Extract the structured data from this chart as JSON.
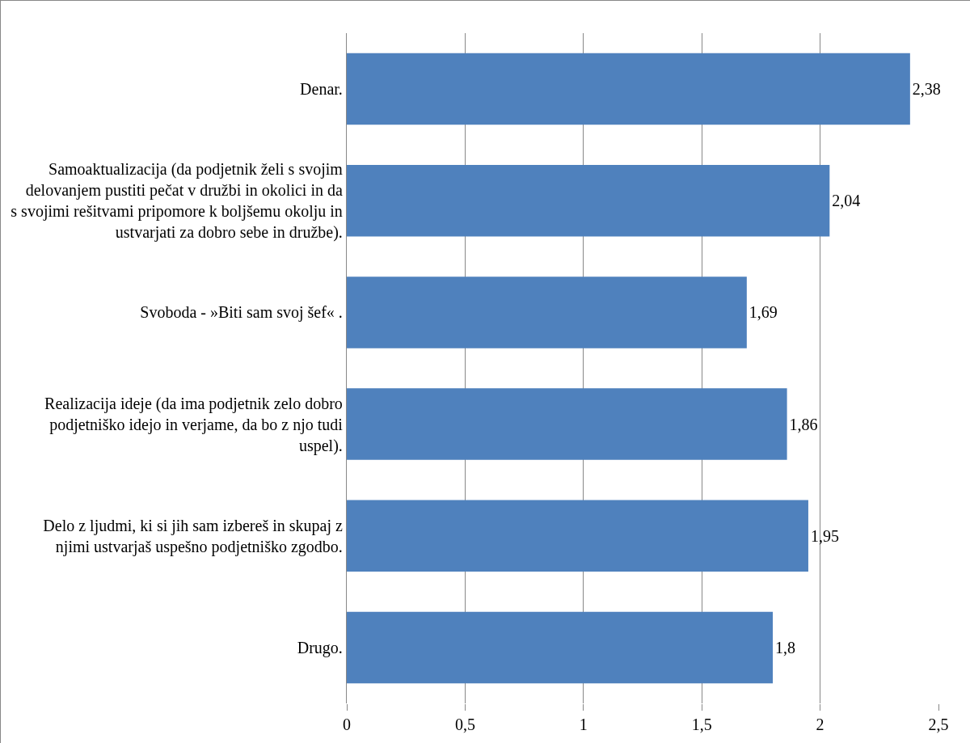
{
  "chart_data": {
    "type": "bar",
    "orientation": "horizontal",
    "categories": [
      "Denar.",
      "Samoaktualizacija (da podjetnik želi s svojim delovanjem pustiti pečat v družbi in okolici in da s svojimi rešitvami pripomore k boljšemu okolju in ustvarjati za dobro sebe in družbe).",
      "Svoboda - »Biti sam svoj šef« .",
      "Realizacija ideje (da ima podjetnik zelo dobro podjetniško idejo in verjame, da bo z njo tudi uspel).",
      "Delo z ljudmi, ki si jih sam izbereš in skupaj z njimi ustvarjaš uspešno podjetniško zgodbo.",
      "Drugo."
    ],
    "values": [
      2.38,
      2.04,
      1.69,
      1.86,
      1.95,
      1.8
    ],
    "color": "#4f81bd",
    "xlim": [
      0,
      2.5
    ],
    "xticks": [
      0,
      {
        "value": 0.5,
        "label": "0,5"
      },
      1,
      {
        "value": 1.5,
        "label": "1,5"
      },
      2,
      {
        "value": 2.5,
        "label": "2,5"
      }
    ],
    "value_labels": [
      "2,38",
      "2,04",
      "1,69",
      "1,86",
      "1,95",
      "1,8"
    ],
    "grid": "x",
    "legend": false
  }
}
